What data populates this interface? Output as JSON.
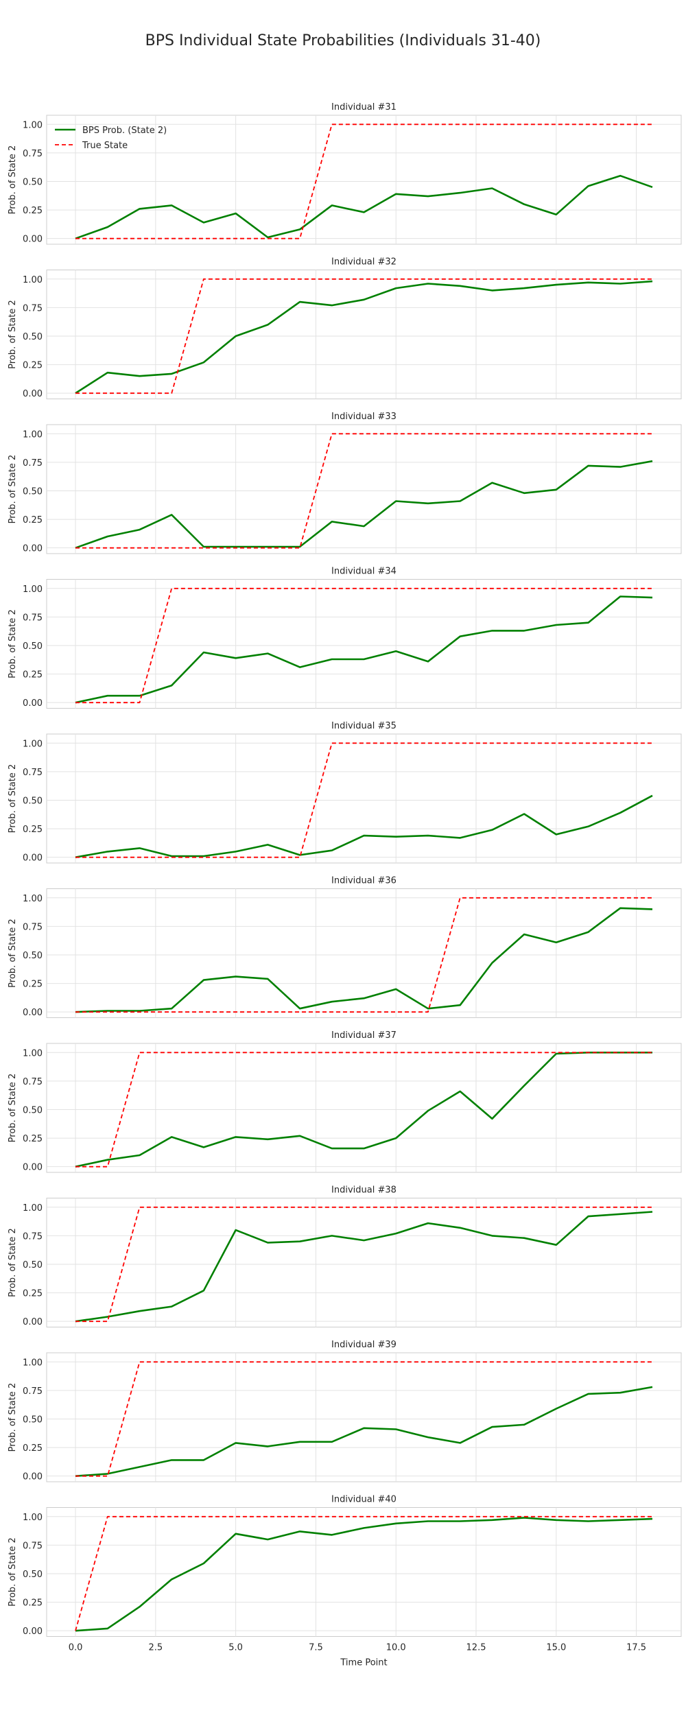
{
  "figure": {
    "title": "BPS Individual State Probabilities (Individuals 31-40)"
  },
  "legend": {
    "items": [
      "BPS Prob. (State 2)",
      "True State"
    ],
    "colors": [
      "#008000",
      "#ff0000"
    ],
    "placement": "upper-left of first panel"
  },
  "chart_data": [
    {
      "type": "line",
      "title": "Individual #31",
      "ylabel": "Prob. of State 2",
      "xlabel": "",
      "x": [
        0,
        1,
        2,
        3,
        4,
        5,
        6,
        7,
        8,
        9,
        10,
        11,
        12,
        13,
        14,
        15,
        16,
        17,
        18
      ],
      "xlim": [
        -0.9,
        18.9
      ],
      "ylim": [
        -0.05,
        1.08
      ],
      "yticks": [
        "0.00",
        "0.25",
        "0.50",
        "0.75",
        "1.00"
      ],
      "xticks": [],
      "grid": true,
      "series": [
        {
          "name": "BPS Prob. (State 2)",
          "values": [
            0.0,
            0.1,
            0.26,
            0.29,
            0.14,
            0.22,
            0.01,
            0.08,
            0.29,
            0.23,
            0.39,
            0.37,
            0.4,
            0.44,
            0.3,
            0.21,
            0.46,
            0.55,
            0.45
          ]
        },
        {
          "name": "True State",
          "values": [
            0,
            0,
            0,
            0,
            0,
            0,
            0,
            0,
            1,
            1,
            1,
            1,
            1,
            1,
            1,
            1,
            1,
            1,
            1
          ]
        }
      ]
    },
    {
      "type": "line",
      "title": "Individual #32",
      "ylabel": "Prob. of State 2",
      "xlabel": "",
      "x": [
        0,
        1,
        2,
        3,
        4,
        5,
        6,
        7,
        8,
        9,
        10,
        11,
        12,
        13,
        14,
        15,
        16,
        17,
        18
      ],
      "xlim": [
        -0.9,
        18.9
      ],
      "ylim": [
        -0.05,
        1.08
      ],
      "yticks": [
        "0.00",
        "0.25",
        "0.50",
        "0.75",
        "1.00"
      ],
      "xticks": [],
      "grid": true,
      "series": [
        {
          "name": "BPS Prob. (State 2)",
          "values": [
            0.0,
            0.18,
            0.15,
            0.17,
            0.27,
            0.5,
            0.6,
            0.8,
            0.77,
            0.82,
            0.92,
            0.96,
            0.94,
            0.9,
            0.92,
            0.95,
            0.97,
            0.96,
            0.98
          ]
        },
        {
          "name": "True State",
          "values": [
            0,
            0,
            0,
            0,
            1,
            1,
            1,
            1,
            1,
            1,
            1,
            1,
            1,
            1,
            1,
            1,
            1,
            1,
            1
          ]
        }
      ]
    },
    {
      "type": "line",
      "title": "Individual #33",
      "ylabel": "Prob. of State 2",
      "xlabel": "",
      "x": [
        0,
        1,
        2,
        3,
        4,
        5,
        6,
        7,
        8,
        9,
        10,
        11,
        12,
        13,
        14,
        15,
        16,
        17,
        18
      ],
      "xlim": [
        -0.9,
        18.9
      ],
      "ylim": [
        -0.05,
        1.08
      ],
      "yticks": [
        "0.00",
        "0.25",
        "0.50",
        "0.75",
        "1.00"
      ],
      "xticks": [],
      "grid": true,
      "series": [
        {
          "name": "BPS Prob. (State 2)",
          "values": [
            0.0,
            0.1,
            0.16,
            0.29,
            0.01,
            0.01,
            0.01,
            0.01,
            0.23,
            0.19,
            0.41,
            0.39,
            0.41,
            0.57,
            0.48,
            0.51,
            0.72,
            0.71,
            0.76
          ]
        },
        {
          "name": "True State",
          "values": [
            0,
            0,
            0,
            0,
            0,
            0,
            0,
            0,
            1,
            1,
            1,
            1,
            1,
            1,
            1,
            1,
            1,
            1,
            1
          ]
        }
      ]
    },
    {
      "type": "line",
      "title": "Individual #34",
      "ylabel": "Prob. of State 2",
      "xlabel": "",
      "x": [
        0,
        1,
        2,
        3,
        4,
        5,
        6,
        7,
        8,
        9,
        10,
        11,
        12,
        13,
        14,
        15,
        16,
        17,
        18
      ],
      "xlim": [
        -0.9,
        18.9
      ],
      "ylim": [
        -0.05,
        1.08
      ],
      "yticks": [
        "0.00",
        "0.25",
        "0.50",
        "0.75",
        "1.00"
      ],
      "xticks": [],
      "grid": true,
      "series": [
        {
          "name": "BPS Prob. (State 2)",
          "values": [
            0.0,
            0.06,
            0.06,
            0.15,
            0.44,
            0.39,
            0.43,
            0.31,
            0.38,
            0.38,
            0.45,
            0.36,
            0.58,
            0.63,
            0.63,
            0.68,
            0.7,
            0.93,
            0.92
          ]
        },
        {
          "name": "True State",
          "values": [
            0,
            0,
            0,
            1,
            1,
            1,
            1,
            1,
            1,
            1,
            1,
            1,
            1,
            1,
            1,
            1,
            1,
            1,
            1
          ]
        }
      ]
    },
    {
      "type": "line",
      "title": "Individual #35",
      "ylabel": "Prob. of State 2",
      "xlabel": "",
      "x": [
        0,
        1,
        2,
        3,
        4,
        5,
        6,
        7,
        8,
        9,
        10,
        11,
        12,
        13,
        14,
        15,
        16,
        17,
        18
      ],
      "xlim": [
        -0.9,
        18.9
      ],
      "ylim": [
        -0.05,
        1.08
      ],
      "yticks": [
        "0.00",
        "0.25",
        "0.50",
        "0.75",
        "1.00"
      ],
      "xticks": [],
      "grid": true,
      "series": [
        {
          "name": "BPS Prob. (State 2)",
          "values": [
            0.0,
            0.05,
            0.08,
            0.01,
            0.01,
            0.05,
            0.11,
            0.02,
            0.06,
            0.19,
            0.18,
            0.19,
            0.17,
            0.24,
            0.38,
            0.2,
            0.27,
            0.39,
            0.54
          ]
        },
        {
          "name": "True State",
          "values": [
            0,
            0,
            0,
            0,
            0,
            0,
            0,
            0,
            1,
            1,
            1,
            1,
            1,
            1,
            1,
            1,
            1,
            1,
            1
          ]
        }
      ]
    },
    {
      "type": "line",
      "title": "Individual #36",
      "ylabel": "Prob. of State 2",
      "xlabel": "",
      "x": [
        0,
        1,
        2,
        3,
        4,
        5,
        6,
        7,
        8,
        9,
        10,
        11,
        12,
        13,
        14,
        15,
        16,
        17,
        18
      ],
      "xlim": [
        -0.9,
        18.9
      ],
      "ylim": [
        -0.05,
        1.08
      ],
      "yticks": [
        "0.00",
        "0.25",
        "0.50",
        "0.75",
        "1.00"
      ],
      "xticks": [],
      "grid": true,
      "series": [
        {
          "name": "BPS Prob. (State 2)",
          "values": [
            0.0,
            0.01,
            0.01,
            0.03,
            0.28,
            0.31,
            0.29,
            0.03,
            0.09,
            0.12,
            0.2,
            0.03,
            0.06,
            0.43,
            0.68,
            0.61,
            0.7,
            0.91,
            0.9
          ]
        },
        {
          "name": "True State",
          "values": [
            0,
            0,
            0,
            0,
            0,
            0,
            0,
            0,
            0,
            0,
            0,
            0,
            1,
            1,
            1,
            1,
            1,
            1,
            1
          ]
        }
      ]
    },
    {
      "type": "line",
      "title": "Individual #37",
      "ylabel": "Prob. of State 2",
      "xlabel": "",
      "x": [
        0,
        1,
        2,
        3,
        4,
        5,
        6,
        7,
        8,
        9,
        10,
        11,
        12,
        13,
        14,
        15,
        16,
        17,
        18
      ],
      "xlim": [
        -0.9,
        18.9
      ],
      "ylim": [
        -0.05,
        1.08
      ],
      "yticks": [
        "0.00",
        "0.25",
        "0.50",
        "0.75",
        "1.00"
      ],
      "xticks": [],
      "grid": true,
      "series": [
        {
          "name": "BPS Prob. (State 2)",
          "values": [
            0.0,
            0.06,
            0.1,
            0.26,
            0.17,
            0.26,
            0.24,
            0.27,
            0.16,
            0.16,
            0.25,
            0.49,
            0.66,
            0.42,
            0.71,
            0.99,
            1.0,
            1.0,
            1.0
          ]
        },
        {
          "name": "True State",
          "values": [
            0,
            0,
            1,
            1,
            1,
            1,
            1,
            1,
            1,
            1,
            1,
            1,
            1,
            1,
            1,
            1,
            1,
            1,
            1
          ]
        }
      ]
    },
    {
      "type": "line",
      "title": "Individual #38",
      "ylabel": "Prob. of State 2",
      "xlabel": "",
      "x": [
        0,
        1,
        2,
        3,
        4,
        5,
        6,
        7,
        8,
        9,
        10,
        11,
        12,
        13,
        14,
        15,
        16,
        17,
        18
      ],
      "xlim": [
        -0.9,
        18.9
      ],
      "ylim": [
        -0.05,
        1.08
      ],
      "yticks": [
        "0.00",
        "0.25",
        "0.50",
        "0.75",
        "1.00"
      ],
      "xticks": [],
      "grid": true,
      "series": [
        {
          "name": "BPS Prob. (State 2)",
          "values": [
            0.0,
            0.04,
            0.09,
            0.13,
            0.27,
            0.8,
            0.69,
            0.7,
            0.75,
            0.71,
            0.77,
            0.86,
            0.82,
            0.75,
            0.73,
            0.67,
            0.92,
            0.94,
            0.96
          ]
        },
        {
          "name": "True State",
          "values": [
            0,
            0,
            1,
            1,
            1,
            1,
            1,
            1,
            1,
            1,
            1,
            1,
            1,
            1,
            1,
            1,
            1,
            1,
            1
          ]
        }
      ]
    },
    {
      "type": "line",
      "title": "Individual #39",
      "ylabel": "Prob. of State 2",
      "xlabel": "",
      "x": [
        0,
        1,
        2,
        3,
        4,
        5,
        6,
        7,
        8,
        9,
        10,
        11,
        12,
        13,
        14,
        15,
        16,
        17,
        18
      ],
      "xlim": [
        -0.9,
        18.9
      ],
      "ylim": [
        -0.05,
        1.08
      ],
      "yticks": [
        "0.00",
        "0.25",
        "0.50",
        "0.75",
        "1.00"
      ],
      "xticks": [],
      "grid": true,
      "series": [
        {
          "name": "BPS Prob. (State 2)",
          "values": [
            0.0,
            0.02,
            0.08,
            0.14,
            0.14,
            0.29,
            0.26,
            0.3,
            0.3,
            0.42,
            0.41,
            0.34,
            0.29,
            0.43,
            0.45,
            0.59,
            0.72,
            0.73,
            0.78
          ]
        },
        {
          "name": "True State",
          "values": [
            0,
            0,
            1,
            1,
            1,
            1,
            1,
            1,
            1,
            1,
            1,
            1,
            1,
            1,
            1,
            1,
            1,
            1,
            1
          ]
        }
      ]
    },
    {
      "type": "line",
      "title": "Individual #40",
      "ylabel": "Prob. of State 2",
      "xlabel": "Time Point",
      "x": [
        0,
        1,
        2,
        3,
        4,
        5,
        6,
        7,
        8,
        9,
        10,
        11,
        12,
        13,
        14,
        15,
        16,
        17,
        18
      ],
      "xlim": [
        -0.9,
        18.9
      ],
      "ylim": [
        -0.05,
        1.08
      ],
      "yticks": [
        "0.00",
        "0.25",
        "0.50",
        "0.75",
        "1.00"
      ],
      "xticks": [
        "0.0",
        "2.5",
        "5.0",
        "7.5",
        "10.0",
        "12.5",
        "15.0",
        "17.5"
      ],
      "grid": true,
      "series": [
        {
          "name": "BPS Prob. (State 2)",
          "values": [
            0.0,
            0.02,
            0.21,
            0.45,
            0.59,
            0.85,
            0.8,
            0.87,
            0.84,
            0.9,
            0.94,
            0.96,
            0.96,
            0.97,
            0.99,
            0.97,
            0.96,
            0.97,
            0.98
          ]
        },
        {
          "name": "True State",
          "values": [
            0,
            1,
            1,
            1,
            1,
            1,
            1,
            1,
            1,
            1,
            1,
            1,
            1,
            1,
            1,
            1,
            1,
            1,
            1
          ]
        }
      ]
    }
  ]
}
